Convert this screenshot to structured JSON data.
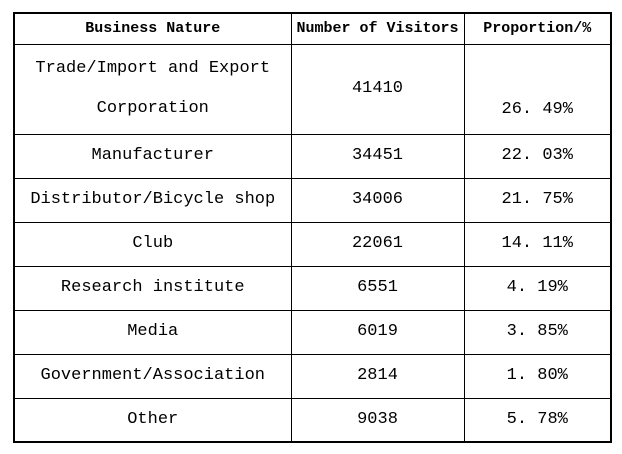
{
  "colors": {
    "background": "#ffffff",
    "border": "#000000",
    "text": "#000000"
  },
  "table": {
    "headers": [
      "Business Nature",
      "Number of Visitors",
      "Proportion/%"
    ],
    "rows": [
      {
        "name": "Trade/Import and Export\nCorporation",
        "visitors": "41410",
        "proportion": "26. 49%"
      },
      {
        "name": "Manufacturer",
        "visitors": "34451",
        "proportion": "22. 03%"
      },
      {
        "name": "Distributor/Bicycle shop",
        "visitors": "34006",
        "proportion": "21. 75%"
      },
      {
        "name": "Club",
        "visitors": "22061",
        "proportion": "14. 11%"
      },
      {
        "name": "Research institute",
        "visitors": "6551",
        "proportion": "4. 19%"
      },
      {
        "name": "Media",
        "visitors": "6019",
        "proportion": "3. 85%"
      },
      {
        "name": "Government/Association",
        "visitors": "2814",
        "proportion": "1. 80%"
      },
      {
        "name": "Other",
        "visitors": "9038",
        "proportion": "5. 78%"
      }
    ]
  },
  "chart_data": {
    "type": "table",
    "columns": [
      "Business Nature",
      "Number of Visitors",
      "Proportion/%"
    ],
    "categories": [
      "Trade/Import and Export Corporation",
      "Manufacturer",
      "Distributor/Bicycle shop",
      "Club",
      "Research institute",
      "Media",
      "Government/Association",
      "Other"
    ],
    "series": [
      {
        "name": "Number of Visitors",
        "values": [
          41410,
          34451,
          34006,
          22061,
          6551,
          6019,
          2814,
          9038
        ]
      },
      {
        "name": "Proportion/%",
        "values": [
          26.49,
          22.03,
          21.75,
          14.11,
          4.19,
          3.85,
          1.8,
          5.78
        ]
      }
    ],
    "title": "",
    "xlabel": "",
    "ylabel": ""
  }
}
